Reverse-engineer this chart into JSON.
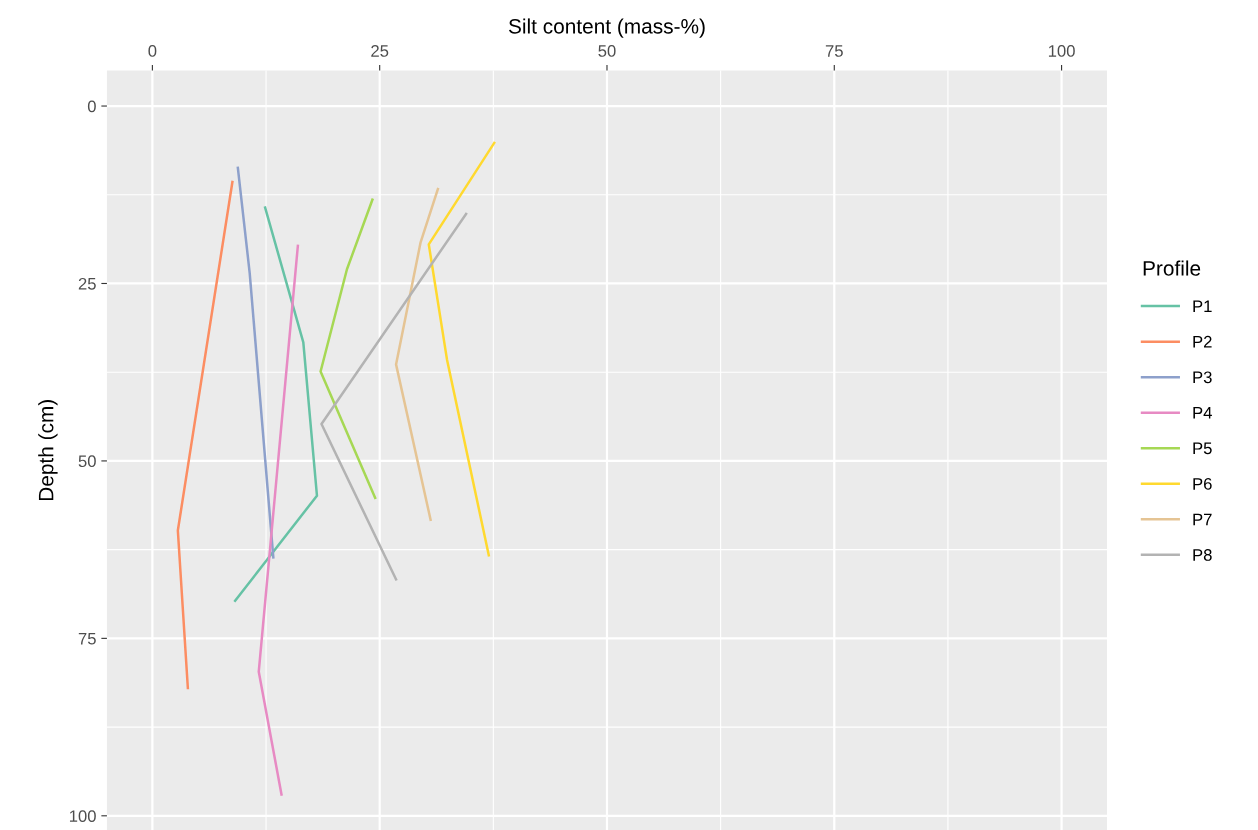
{
  "chart_data": {
    "type": "line",
    "xlabel": "Silt content (mass-%)",
    "ylabel": "Depth (cm)",
    "legend_title": "Profile",
    "legend": "right",
    "grid": true,
    "xlim": [
      -5,
      105
    ],
    "xticks": [
      0,
      25,
      50,
      75,
      100
    ],
    "ylim": [
      102,
      -5
    ],
    "yticks": [
      0,
      25,
      50,
      75,
      100
    ],
    "series": [
      {
        "name": "P1",
        "color": "#66c2a5",
        "x": [
          12.4,
          16.6,
          18.1,
          9.1
        ],
        "values": [
          14.3,
          33.3,
          54.9,
          69.7
        ]
      },
      {
        "name": "P2",
        "color": "#fc8d62",
        "x": [
          8.8,
          2.8,
          3.9
        ],
        "values": [
          10.7,
          59.8,
          82
        ]
      },
      {
        "name": "P3",
        "color": "#8da0cb",
        "x": [
          9.4,
          10.7,
          13.3
        ],
        "values": [
          8.7,
          23.5,
          63.6
        ]
      },
      {
        "name": "P4",
        "color": "#e78ac3",
        "x": [
          16.0,
          11.7,
          14.2
        ],
        "values": [
          19.7,
          79.7,
          97
        ]
      },
      {
        "name": "P5",
        "color": "#a6d854",
        "x": [
          24.2,
          21.4,
          18.5,
          24.5
        ],
        "values": [
          13.2,
          23.0,
          37.4,
          55.2
        ]
      },
      {
        "name": "P6",
        "color": "#ffd92f",
        "x": [
          37.6,
          30.4,
          32.4,
          37.0
        ],
        "values": [
          5.2,
          19.5,
          35.7,
          63.3
        ]
      },
      {
        "name": "P7",
        "color": "#e5c494",
        "x": [
          31.4,
          29.5,
          26.8,
          30.6
        ],
        "values": [
          11.7,
          19.2,
          36.4,
          58.3
        ]
      },
      {
        "name": "P8",
        "color": "#b3b3b3",
        "x": [
          34.5,
          18.6,
          26.8
        ],
        "values": [
          15.2,
          44.8,
          66.7
        ]
      }
    ]
  }
}
